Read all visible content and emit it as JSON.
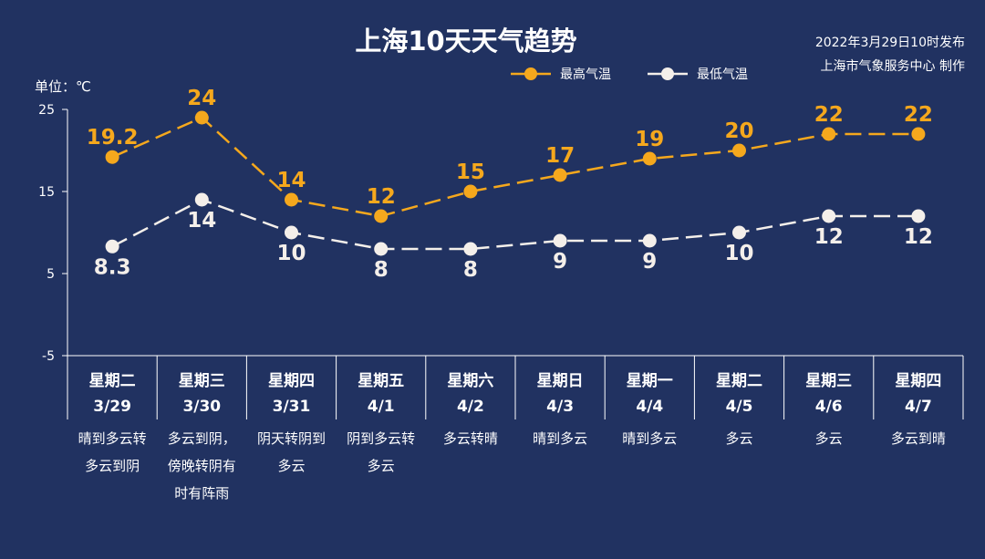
{
  "header": {
    "title": "上海10天天气趋势",
    "publish_line1": "2022年3月29日10时发布",
    "publish_line2": "上海市气象服务中心 制作",
    "unit_label": "单位：℃"
  },
  "colors": {
    "background": "#213261",
    "high": "#F5A81D",
    "low": "#F4EFEA",
    "axis": "#FFFFFF"
  },
  "days": [
    {
      "weekday": "星期二",
      "date": "3/29",
      "desc_lines": [
        "晴到多云转",
        "多云到阴"
      ]
    },
    {
      "weekday": "星期三",
      "date": "3/30",
      "desc_lines": [
        "多云到阴，",
        "傍晚转阴有",
        "时有阵雨"
      ]
    },
    {
      "weekday": "星期四",
      "date": "3/31",
      "desc_lines": [
        "阴天转阴到",
        "多云"
      ]
    },
    {
      "weekday": "星期五",
      "date": "4/1",
      "desc_lines": [
        "阴到多云转",
        "多云"
      ]
    },
    {
      "weekday": "星期六",
      "date": "4/2",
      "desc_lines": [
        "多云转晴"
      ]
    },
    {
      "weekday": "星期日",
      "date": "4/3",
      "desc_lines": [
        "晴到多云"
      ]
    },
    {
      "weekday": "星期一",
      "date": "4/4",
      "desc_lines": [
        "晴到多云"
      ]
    },
    {
      "weekday": "星期二",
      "date": "4/5",
      "desc_lines": [
        "多云"
      ]
    },
    {
      "weekday": "星期三",
      "date": "4/6",
      "desc_lines": [
        "多云"
      ]
    },
    {
      "weekday": "星期四",
      "date": "4/7",
      "desc_lines": [
        "多云到晴"
      ]
    }
  ],
  "chart_data": {
    "type": "line",
    "title": "上海10天天气趋势",
    "ylabel": "单位：℃",
    "ylim": [
      -5,
      25
    ],
    "yticks": [
      -5,
      5,
      15,
      25
    ],
    "grid": false,
    "legend_position": "top-right",
    "categories": [
      "3/29",
      "3/30",
      "3/31",
      "4/1",
      "4/2",
      "4/3",
      "4/4",
      "4/5",
      "4/6",
      "4/7"
    ],
    "series": [
      {
        "name": "最高气温",
        "color": "#F5A81D",
        "values": [
          19.2,
          24,
          14,
          12,
          15,
          17,
          19,
          20,
          22,
          22
        ],
        "labels": [
          "19.2",
          "24",
          "14",
          "12",
          "15",
          "17",
          "19",
          "20",
          "22",
          "22"
        ]
      },
      {
        "name": "最低气温",
        "color": "#F4EFEA",
        "values": [
          8.3,
          14,
          10,
          8,
          8,
          9,
          9,
          10,
          12,
          12
        ],
        "labels": [
          "8.3",
          "14",
          "10",
          "8",
          "8",
          "9",
          "9",
          "10",
          "12",
          "12"
        ]
      }
    ]
  }
}
